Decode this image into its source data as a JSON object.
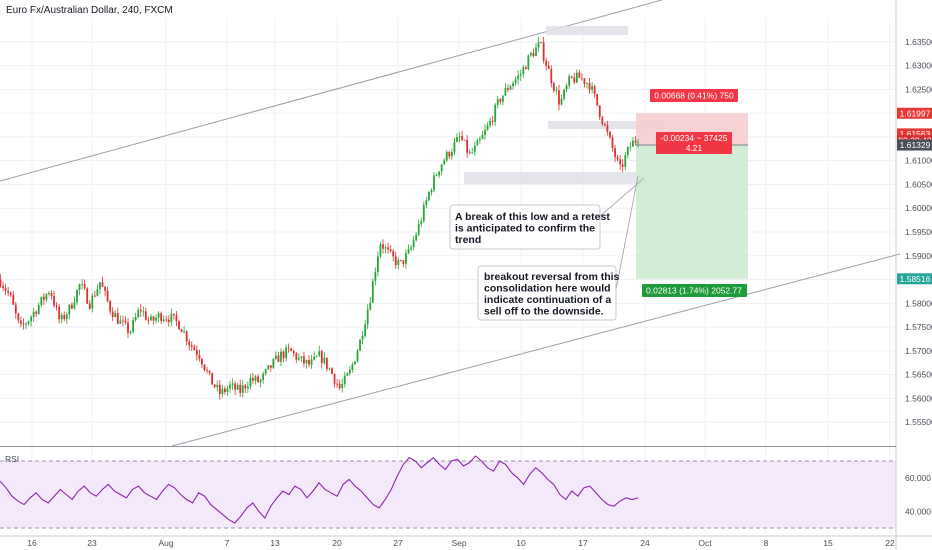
{
  "header": {
    "title": "Euro Fx/Australian Dollar, 240, FXCM"
  },
  "chart_data": {
    "type": "candlestick",
    "symbol": "Euro Fx/Australian Dollar",
    "timeframe": "240",
    "source": "FXCM",
    "price_axis": {
      "ylim": [
        1.55,
        1.64
      ],
      "ticks": [
        "1.63500",
        "1.63000",
        "1.62500",
        "1.62000",
        "1.61500",
        "1.61000",
        "1.60500",
        "1.60000",
        "1.59500",
        "1.59000",
        "1.58500",
        "1.58000",
        "1.57500",
        "1.57000",
        "1.56500",
        "1.56000",
        "1.55500"
      ]
    },
    "x_axis": {
      "ticks": [
        "16",
        "23",
        "Aug",
        "7",
        "13",
        "20",
        "27",
        "Sep",
        "10",
        "17",
        "24",
        "Oct",
        "8",
        "15",
        "22"
      ]
    },
    "price_path": [
      [
        0,
        1.585
      ],
      [
        10,
        1.5815
      ],
      [
        20,
        1.5745
      ],
      [
        30,
        1.577
      ],
      [
        40,
        1.58
      ],
      [
        50,
        1.583
      ],
      [
        60,
        1.576
      ],
      [
        70,
        1.579
      ],
      [
        80,
        1.584
      ],
      [
        90,
        1.58
      ],
      [
        100,
        1.5845
      ],
      [
        110,
        1.579
      ],
      [
        120,
        1.576
      ],
      [
        130,
        1.574
      ],
      [
        140,
        1.579
      ],
      [
        150,
        1.576
      ],
      [
        160,
        1.5775
      ],
      [
        170,
        1.577
      ],
      [
        180,
        1.5755
      ],
      [
        190,
        1.5715
      ],
      [
        200,
        1.569
      ],
      [
        210,
        1.564
      ],
      [
        220,
        1.561
      ],
      [
        230,
        1.5625
      ],
      [
        240,
        1.5615
      ],
      [
        250,
        1.564
      ],
      [
        260,
        1.5635
      ],
      [
        270,
        1.5665
      ],
      [
        280,
        1.569
      ],
      [
        290,
        1.57
      ],
      [
        300,
        1.568
      ],
      [
        310,
        1.567
      ],
      [
        320,
        1.569
      ],
      [
        330,
        1.566
      ],
      [
        340,
        1.562
      ],
      [
        350,
        1.5655
      ],
      [
        360,
        1.572
      ],
      [
        370,
        1.581
      ],
      [
        380,
        1.593
      ],
      [
        390,
        1.59
      ],
      [
        400,
        1.588
      ],
      [
        410,
        1.591
      ],
      [
        420,
        1.597
      ],
      [
        430,
        1.604
      ],
      [
        440,
        1.609
      ],
      [
        450,
        1.612
      ],
      [
        460,
        1.615
      ],
      [
        470,
        1.611
      ],
      [
        480,
        1.614
      ],
      [
        490,
        1.618
      ],
      [
        500,
        1.623
      ],
      [
        510,
        1.626
      ],
      [
        520,
        1.628
      ],
      [
        530,
        1.632
      ],
      [
        540,
        1.6345
      ],
      [
        550,
        1.628
      ],
      [
        560,
        1.622
      ],
      [
        570,
        1.627
      ],
      [
        580,
        1.6275
      ],
      [
        590,
        1.626
      ],
      [
        600,
        1.62
      ],
      [
        610,
        1.614
      ],
      [
        620,
        1.608
      ],
      [
        630,
        1.613
      ],
      [
        638,
        1.615
      ]
    ],
    "trade": {
      "position": "short",
      "stop_label": "0.00668 (0.41%) 750",
      "current_label": "-0.00234 ~ 37425",
      "current_sub_label": "4.21",
      "target_label": "0.02813 (1.74%) 2052.77"
    },
    "price_badges": [
      {
        "label": "1.61997",
        "price": 1.61997,
        "color": "#e53935"
      },
      {
        "label": "1.61563",
        "price": 1.61563,
        "color": "#e53935"
      },
      {
        "label": "03:38:48",
        "price": 1.6142,
        "color": "#d32f2f"
      },
      {
        "label": "1.61329",
        "price": 1.61329,
        "color": "#4a4e59"
      },
      {
        "label": "1.58516",
        "price": 1.58516,
        "color": "#26a69a"
      }
    ],
    "annotations": [
      {
        "lines": [
          "A break of this low and a retest",
          "is anticipated to confirm the",
          "trend"
        ]
      },
      {
        "lines": [
          "breakout reversal from this",
          "consolidation here would",
          "indicate continuation of a",
          "sell off to the downside."
        ]
      }
    ],
    "rsi": {
      "label": "RSI",
      "ticks": [
        "60.000",
        "40.000"
      ],
      "band": [
        30,
        70
      ],
      "values": [
        58,
        54,
        49,
        46,
        44,
        48,
        51,
        47,
        45,
        49,
        53,
        50,
        47,
        52,
        55,
        51,
        49,
        53,
        56,
        52,
        50,
        48,
        53,
        55,
        51,
        49,
        47,
        52,
        56,
        54,
        50,
        47,
        45,
        51,
        49,
        44,
        41,
        38,
        35,
        33,
        37,
        42,
        45,
        40,
        36,
        43,
        48,
        52,
        50,
        55,
        53,
        48,
        52,
        57,
        53,
        51,
        49,
        56,
        59,
        55,
        52,
        48,
        44,
        42,
        47,
        53,
        61,
        68,
        72,
        70,
        66,
        69,
        72,
        68,
        65,
        70,
        71,
        67,
        69,
        73,
        70,
        66,
        64,
        70,
        68,
        63,
        60,
        56,
        62,
        66,
        63,
        59,
        56,
        50,
        47,
        52,
        49,
        54,
        55,
        51,
        47,
        44,
        43,
        46,
        48,
        47,
        48
      ]
    }
  }
}
